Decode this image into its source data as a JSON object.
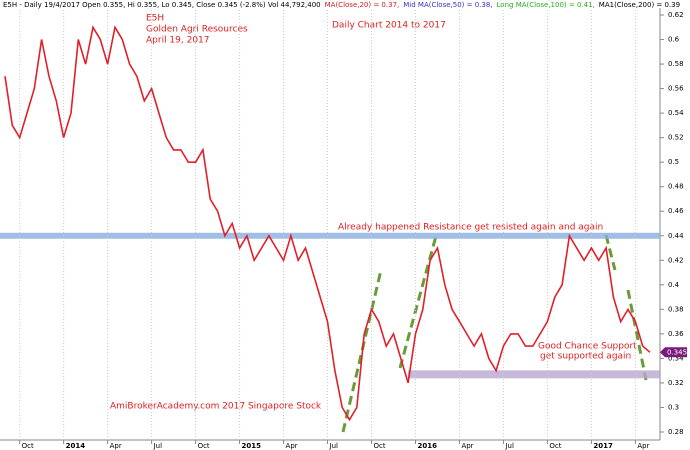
{
  "chart_data": {
    "type": "line",
    "header": [
      {
        "text": "E5H - Daily 19/4/2017 Open 0.355, Hi 0.355, Lo 0.345, Close 0.345 (-2.8%) Vol 44,792,400",
        "color": "#000000"
      },
      {
        "text": "MA(Close,20) = 0.37,",
        "color": "#d02020"
      },
      {
        "text": "Mid MA(Close,50) = 0.38,",
        "color": "#3030d0"
      },
      {
        "text": "Long MA(Close,100) = 0.41,",
        "color": "#20b020"
      },
      {
        "text": "MA1(Close,200) = 0.39",
        "color": "#000000"
      }
    ],
    "annotations": [
      {
        "text": "E5H",
        "color": "#e02020"
      },
      {
        "text": "Golden Agri Resources",
        "color": "#e02020"
      },
      {
        "text": "April 19, 2017",
        "color": "#e02020"
      },
      {
        "text": "Daily Chart  2014 to 2017",
        "color": "#e02020"
      },
      {
        "text": "Already happened Resistance get resisted again and again",
        "color": "#e02020"
      },
      {
        "text": "Good Chance Support",
        "color": "#e02020"
      },
      {
        "text": "get supported again",
        "color": "#e02020"
      },
      {
        "text": "AmiBrokerAcademy.com  2017  Singapore Stock",
        "color": "#e02020"
      }
    ],
    "categories": [
      null,
      null,
      "Oct",
      null,
      null,
      null,
      null,
      null,
      "2014",
      null,
      null,
      null,
      null,
      null,
      "Apr",
      null,
      null,
      null,
      null,
      null,
      "Jul",
      null,
      null,
      null,
      null,
      null,
      "Oct",
      null,
      null,
      null,
      null,
      null,
      "2015",
      null,
      null,
      null,
      null,
      null,
      "Apr",
      null,
      null,
      null,
      null,
      null,
      "Jul",
      null,
      null,
      null,
      null,
      null,
      "Oct",
      null,
      null,
      null,
      null,
      null,
      "2016",
      null,
      null,
      null,
      null,
      null,
      "Apr",
      null,
      null,
      null,
      null,
      null,
      "Jul",
      null,
      null,
      null,
      null,
      null,
      "Oct",
      null,
      null,
      null,
      null,
      null,
      "2017",
      null,
      null,
      null,
      null,
      null,
      "Apr",
      null,
      null
    ],
    "series": [
      {
        "name": "Close",
        "color": "#e0202a",
        "values": [
          0.57,
          0.53,
          0.52,
          0.54,
          0.56,
          0.6,
          0.57,
          0.55,
          0.52,
          0.54,
          0.6,
          0.58,
          0.61,
          0.6,
          0.58,
          0.61,
          0.6,
          0.58,
          0.57,
          0.55,
          0.56,
          0.54,
          0.52,
          0.51,
          0.51,
          0.5,
          0.5,
          0.51,
          0.47,
          0.46,
          0.44,
          0.45,
          0.43,
          0.44,
          0.42,
          0.43,
          0.44,
          0.43,
          0.42,
          0.44,
          0.42,
          0.43,
          0.41,
          0.39,
          0.37,
          0.33,
          0.3,
          0.29,
          0.3,
          0.36,
          0.38,
          0.37,
          0.35,
          0.36,
          0.34,
          0.32,
          0.36,
          0.38,
          0.42,
          0.43,
          0.4,
          0.38,
          0.37,
          0.36,
          0.35,
          0.36,
          0.34,
          0.33,
          0.35,
          0.36,
          0.36,
          0.35,
          0.35,
          0.36,
          0.37,
          0.39,
          0.4,
          0.44,
          0.43,
          0.42,
          0.43,
          0.42,
          0.43,
          0.39,
          0.37,
          0.38,
          0.37,
          0.35,
          0.345
        ]
      }
    ],
    "last_price": 0.345,
    "resistance": 0.44,
    "support": 0.327,
    "ylim": [
      0.28,
      0.62
    ],
    "yticks": [
      0.28,
      0.3,
      0.32,
      0.34,
      0.36,
      0.38,
      0.4,
      0.42,
      0.44,
      0.46,
      0.48,
      0.5,
      0.52,
      0.54,
      0.56,
      0.58,
      0.6,
      0.62
    ],
    "grid": "x"
  }
}
